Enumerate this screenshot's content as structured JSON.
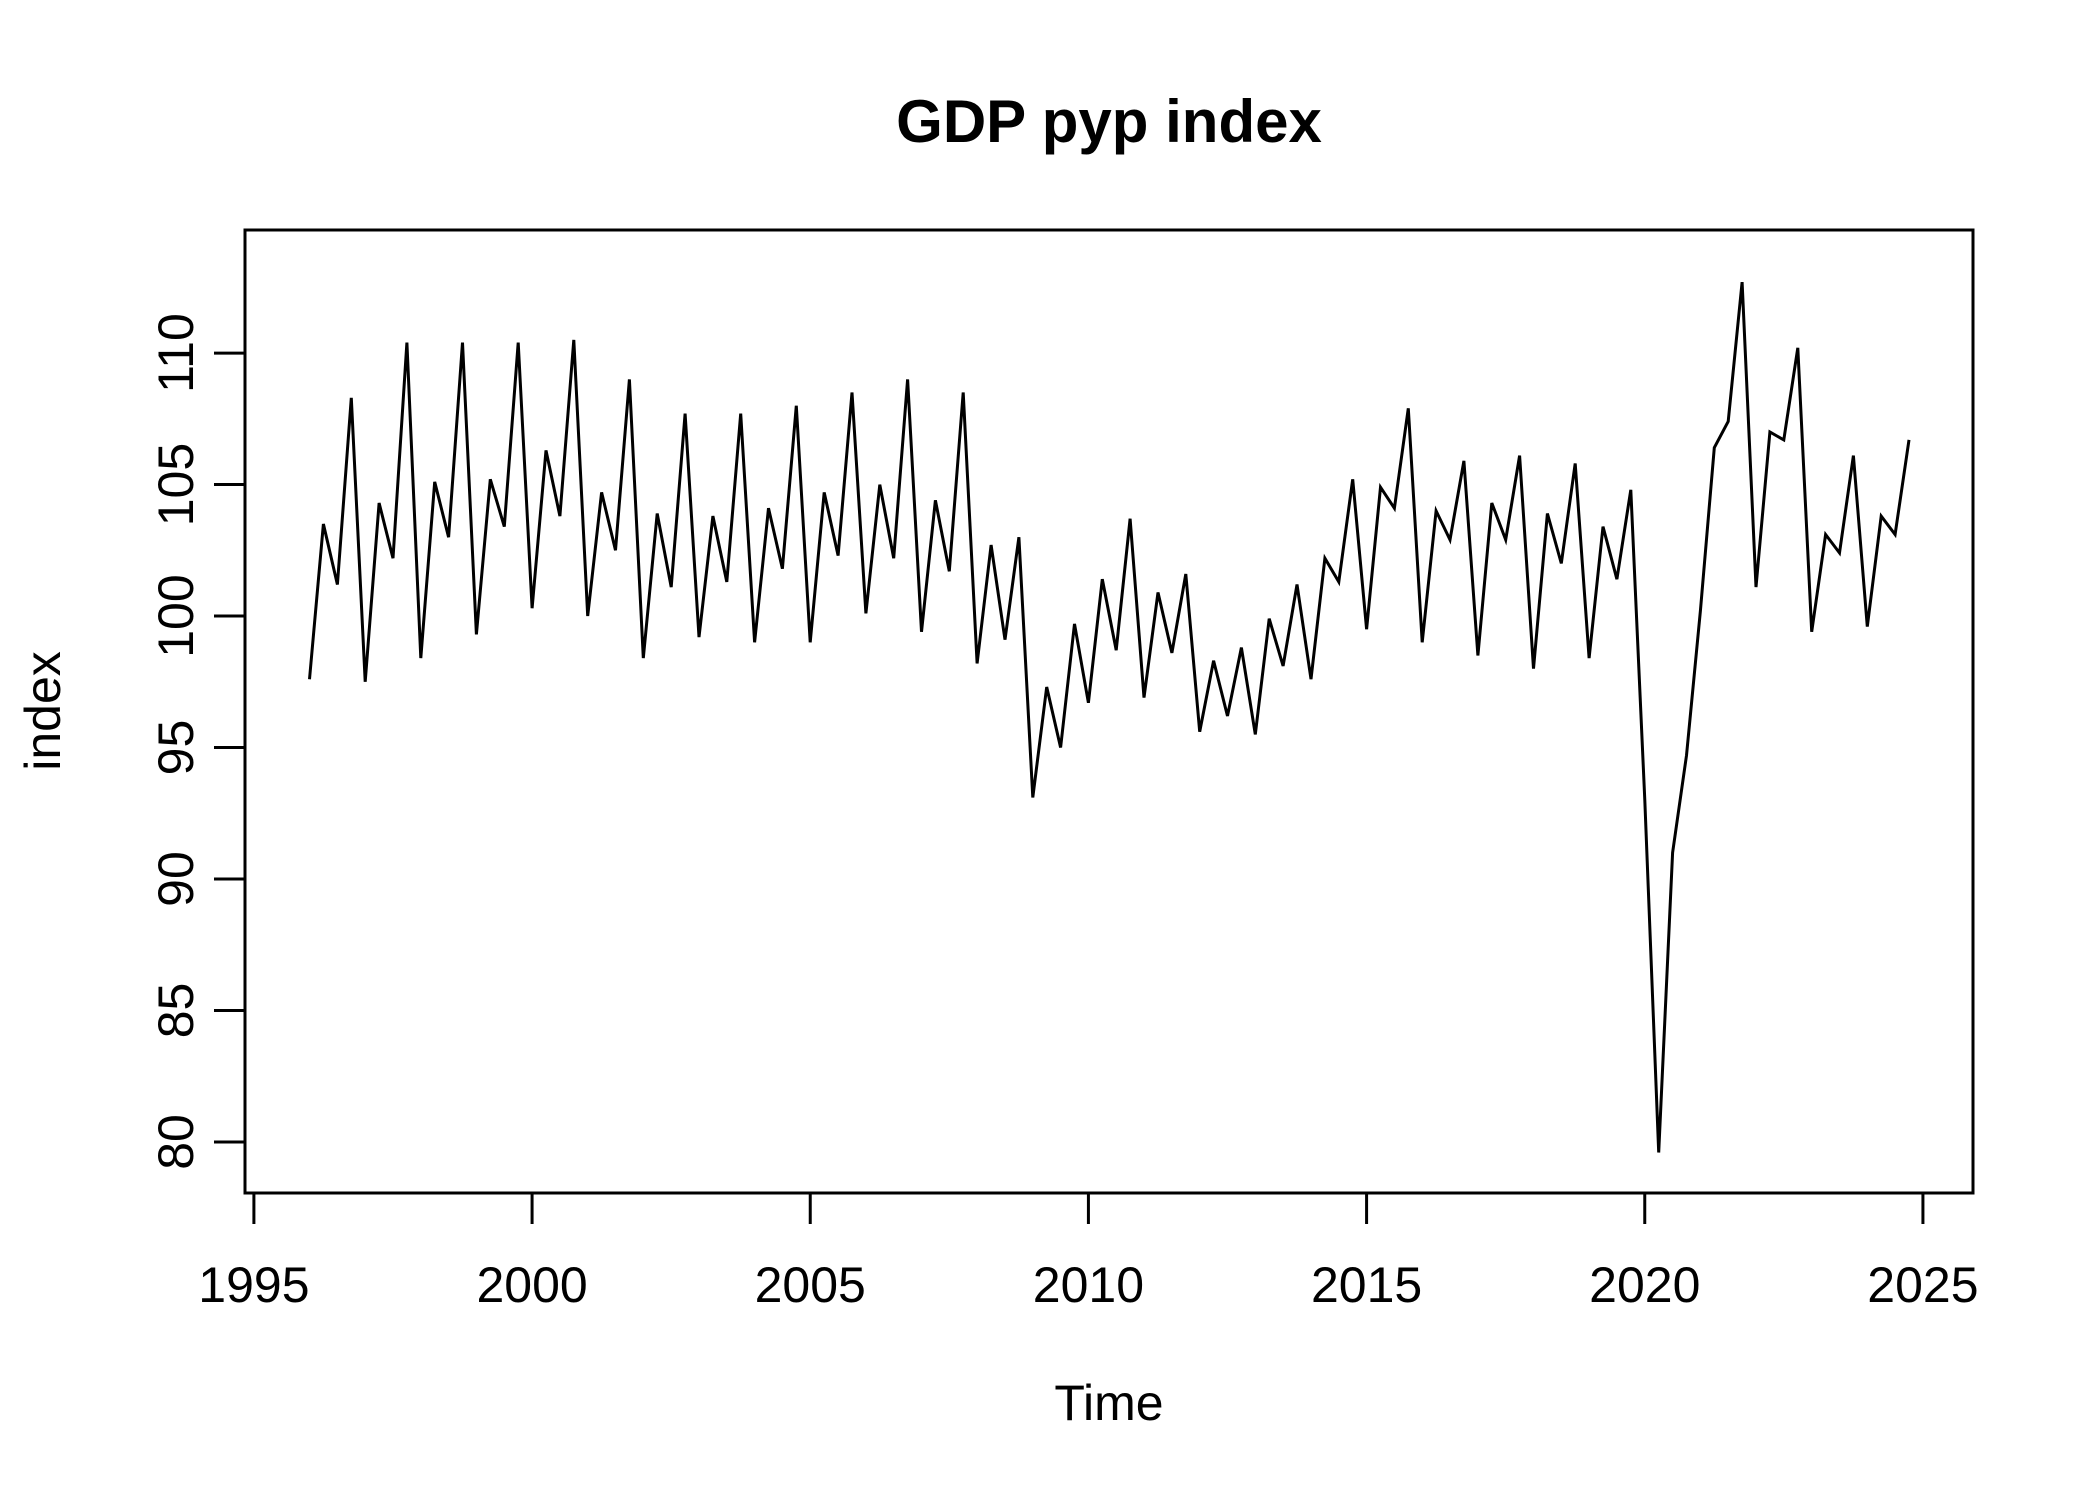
{
  "chart_data": {
    "type": "line",
    "title": "GDP pyp index",
    "xlabel": "Time",
    "ylabel": "index",
    "x_ticks": [
      1995,
      2000,
      2005,
      2010,
      2015,
      2020,
      2025
    ],
    "y_ticks": [
      80,
      85,
      90,
      95,
      100,
      105,
      110
    ],
    "xlim": [
      1994.84,
      2025.9
    ],
    "ylim": [
      78.06,
      114.68
    ],
    "grid": false,
    "legend": "none",
    "line_color": "#000000",
    "background_color": "#ffffff",
    "series": [
      {
        "name": "GDP pyp index",
        "start": 1996.0,
        "frequency": 4,
        "values": [
          97.6,
          103.5,
          101.2,
          108.3,
          97.5,
          104.3,
          102.2,
          110.4,
          98.4,
          105.1,
          103.0,
          110.4,
          99.3,
          105.2,
          103.4,
          110.4,
          100.3,
          106.3,
          103.8,
          110.5,
          100.0,
          104.7,
          102.5,
          109.0,
          98.4,
          103.9,
          101.1,
          107.7,
          99.2,
          103.8,
          101.3,
          107.7,
          99.0,
          104.1,
          101.8,
          108.0,
          99.0,
          104.7,
          102.3,
          108.5,
          100.1,
          105.0,
          102.2,
          109.0,
          99.4,
          104.4,
          101.7,
          108.5,
          98.2,
          102.7,
          99.1,
          103.0,
          93.1,
          97.3,
          95.0,
          99.7,
          96.7,
          101.4,
          98.7,
          103.7,
          96.9,
          100.9,
          98.6,
          101.6,
          95.6,
          98.3,
          96.2,
          98.8,
          95.5,
          99.9,
          98.1,
          101.2,
          97.6,
          102.2,
          101.3,
          105.2,
          99.5,
          104.9,
          104.1,
          107.9,
          99.0,
          104.0,
          102.9,
          105.9,
          98.5,
          104.3,
          102.9,
          106.1,
          98.0,
          103.9,
          102.0,
          105.8,
          98.4,
          103.4,
          101.4,
          104.8,
          93.0,
          79.6,
          91.0,
          94.7,
          100.2,
          106.4,
          107.4,
          112.7,
          101.1,
          107.0,
          106.7,
          110.2,
          99.4,
          103.1,
          102.4,
          106.1,
          99.6,
          103.8,
          103.1,
          106.7
        ]
      }
    ]
  }
}
